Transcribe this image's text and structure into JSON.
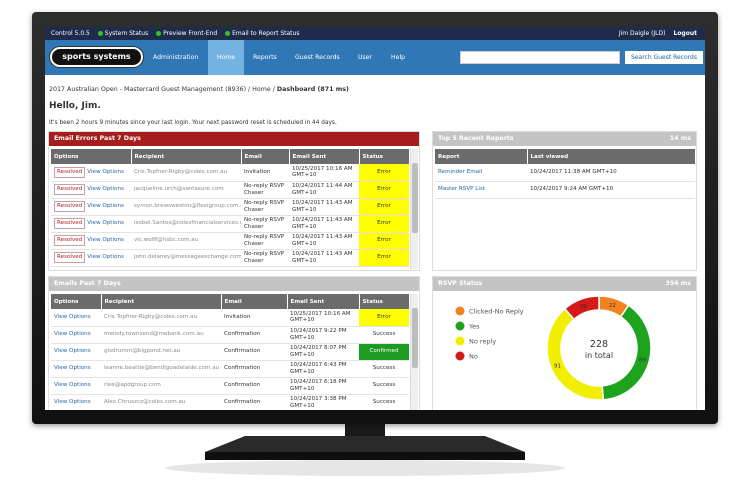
{
  "page": {
    "topbar": {
      "version": "Control 5.0.5",
      "statuses": [
        "System Status",
        "Preview Front-End",
        "Email to Report Status"
      ],
      "user": "Jim Daigle (JLD)",
      "logout": "Logout"
    },
    "nav": {
      "logo": "sports systems",
      "items": [
        "Administration",
        "Home",
        "Reports",
        "Guest Records",
        "User",
        "Help"
      ],
      "search_button": "Search Guest Records"
    },
    "breadcrumb": {
      "path": "2017 Australian Open - Mastercard Guest Management (8936) / Home / ",
      "current": "Dashboard (871 ms)"
    },
    "greeting": "Hello, Jim.",
    "login_note": "It's been 2 hours 9 minutes since your last login. Your next password reset is scheduled in 44 days.",
    "errors": {
      "title": "Email Errors Past 7 Days",
      "columns": [
        "Options",
        "Recipient",
        "Email",
        "Email Sent",
        "Status"
      ],
      "rows": [
        {
          "resolved": "Resolved",
          "options": "View Options",
          "recipient": "Cris.Topfner-Rigby@coles.com.au",
          "email": "Invitation",
          "sent": "10/25/2017 10:16 AM GMT+10",
          "status": "Error",
          "status_color": "#ffff00"
        },
        {
          "resolved": "Resolved",
          "options": "View Options",
          "recipient": "jacqueline.urch@santasure.com",
          "email": "No-reply RSVP Chaser",
          "sent": "10/24/2017 11:44 AM GMT+10",
          "status": "Error",
          "status_color": "#ffff00"
        },
        {
          "resolved": "Resolved",
          "options": "View Options",
          "recipient": "symon.brewsweston@flexigroup.com.au",
          "email": "No-reply RSVP Chaser",
          "sent": "10/24/2017 11:43 AM GMT+10",
          "status": "Error",
          "status_color": "#ffff00"
        },
        {
          "resolved": "Resolved",
          "options": "View Options",
          "recipient": "isobel.Santos@colesfinancialservices.com.au",
          "email": "No-reply RSVP Chaser",
          "sent": "10/24/2017 11:43 AM GMT+10",
          "status": "Error",
          "status_color": "#ffff00"
        },
        {
          "resolved": "Resolved",
          "options": "View Options",
          "recipient": "vic.wolff@hsbc.com.au",
          "email": "No-reply RSVP Chaser",
          "sent": "10/24/2017 11:43 AM GMT+10",
          "status": "Error",
          "status_color": "#ffff00"
        },
        {
          "resolved": "Resolved",
          "options": "View Options",
          "recipient": "John.delaney@messageexchange.com",
          "email": "No-reply RSVP Chaser",
          "sent": "10/24/2017 11:43 AM GMT+10",
          "status": "Error",
          "status_color": "#ffff00"
        }
      ]
    },
    "emails": {
      "title": "Emails Past 7 Days",
      "columns": [
        "Options",
        "Recipient",
        "Email",
        "Email Sent",
        "Status"
      ],
      "rows": [
        {
          "options": "View Options",
          "recipient": "Cris.Topfner-Rigby@coles.com.au",
          "email": "Invitation",
          "sent": "10/25/2017 10:16 AM GMT+10",
          "status": "Error",
          "status_color": "#ffff00"
        },
        {
          "options": "View Options",
          "recipient": "melody.townsend@mebank.com.au",
          "email": "Confirmation",
          "sent": "10/24/2017 9:22 PM GMT+10",
          "status": "Success"
        },
        {
          "options": "View Options",
          "recipient": "glsdrumm@bigpond.net.au",
          "email": "Confirmation",
          "sent": "10/24/2017 8:07 PM GMT+10",
          "status": "Confirmed",
          "status_color": "#1c9a22"
        },
        {
          "options": "View Options",
          "recipient": "leanne.beattie@bendigoadelaide.com.au",
          "email": "Confirmation",
          "sent": "10/24/2017 6:43 PM GMT+10",
          "status": "Success"
        },
        {
          "options": "View Options",
          "recipient": "rlee@apdgroup.com",
          "email": "Confirmation",
          "sent": "10/24/2017 6:18 PM GMT+10",
          "status": "Success"
        },
        {
          "options": "View Options",
          "recipient": "Alex.Chruszcz@coles.com.au",
          "email": "Confirmation",
          "sent": "10/24/2017 3:38 PM GMT+10",
          "status": "Success"
        }
      ]
    },
    "reports": {
      "title": "Top 5 Recent Reports",
      "timing": "14 ms",
      "columns": [
        "Report",
        "Last viewed"
      ],
      "rows": [
        [
          "Reminder Email",
          "10/24/2017 11:38 AM GMT+10"
        ],
        [
          "Master RSVP List",
          "10/24/2017 9:24 AM GMT+10"
        ]
      ]
    },
    "rsvp": {
      "title": "RSVP Status",
      "timing": "354 ms"
    }
  },
  "chart_data": {
    "type": "donut",
    "categories": [
      "Clicked-No Reply",
      "Yes",
      "No reply",
      "No"
    ],
    "values": [
      22,
      89,
      91,
      26
    ],
    "colors": [
      "#f58220",
      "#1ea31e",
      "#f2ee00",
      "#d61a1a"
    ],
    "total": 228,
    "total_caption": "in total"
  }
}
